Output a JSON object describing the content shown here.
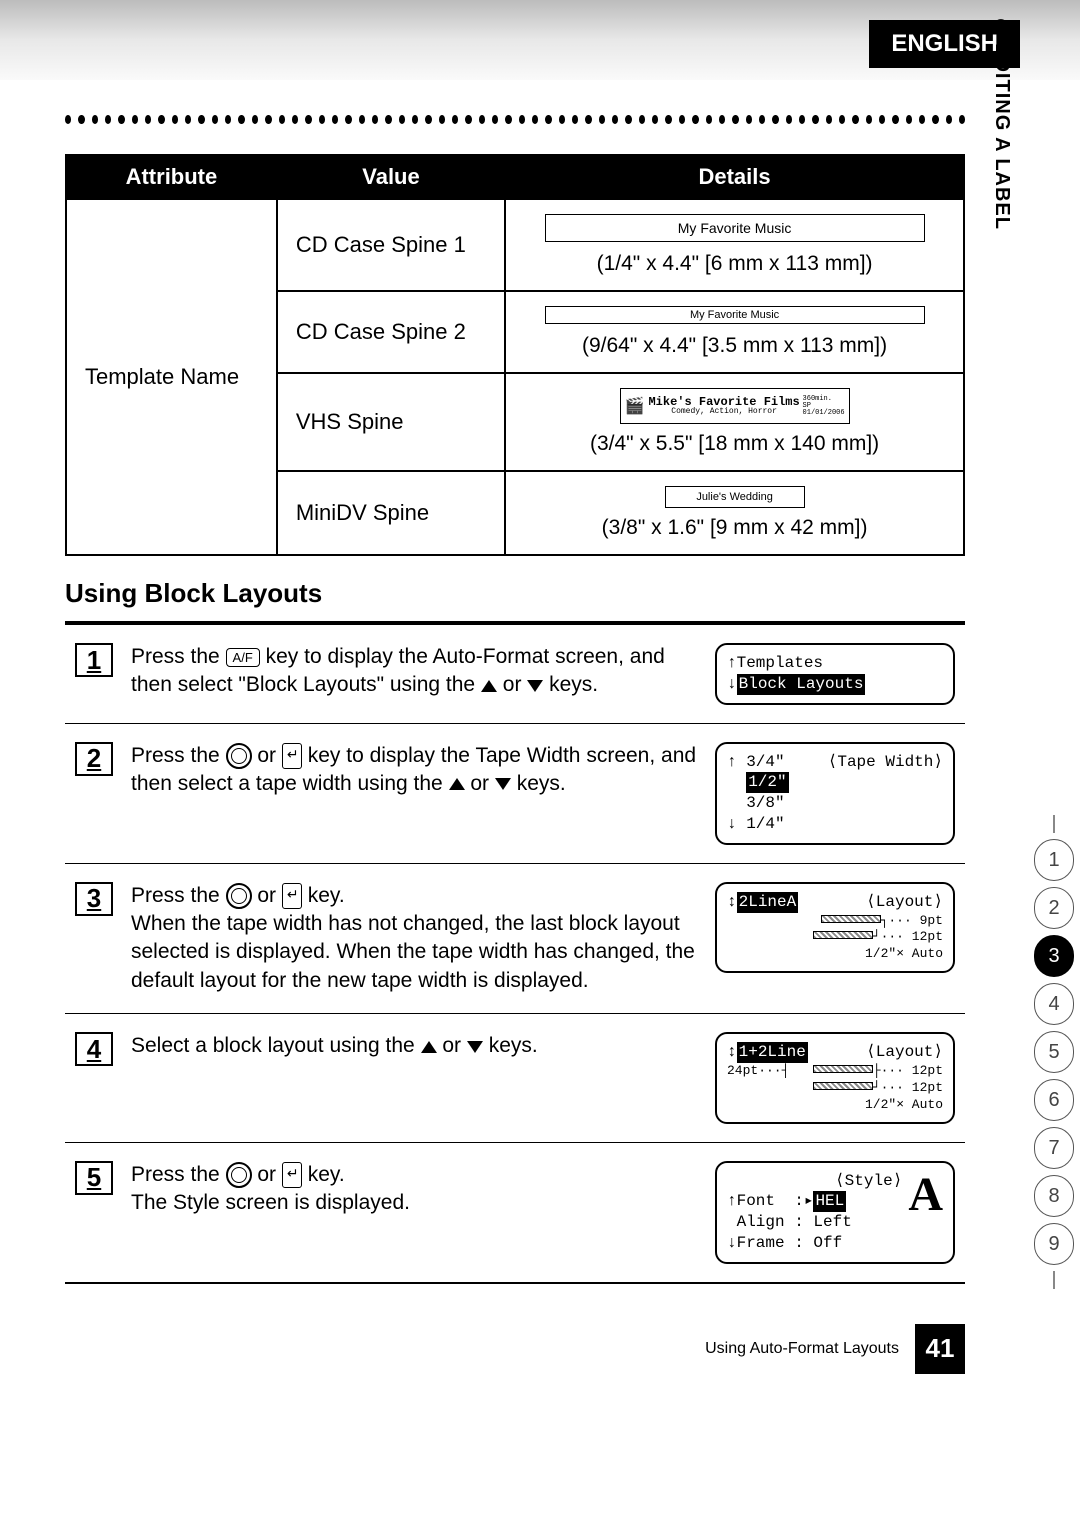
{
  "lang_tab": "ENGLISH",
  "side_section": "EDITING A LABEL",
  "table": {
    "headers": [
      "Attribute",
      "Value",
      "Details"
    ],
    "attribute_label": "Template Name",
    "rows": [
      {
        "value": "CD Case Spine 1",
        "sample_text": "My Favorite Music",
        "dims": "(1/4\" x 4.4\" [6 mm x 113 mm])",
        "sample_class": "sample-1"
      },
      {
        "value": "CD Case Spine 2",
        "sample_text": "My Favorite Music",
        "dims": "(9/64\" x 4.4\" [3.5 mm x 113 mm])",
        "sample_class": "sample-2"
      },
      {
        "value": "VHS Spine",
        "vhs_title": "Mike's Favorite Films",
        "vhs_sub": "Comedy, Action, Horror",
        "vhs_r1": "360min.",
        "vhs_r2": "SP",
        "vhs_r3": "01/01/2006",
        "dims": "(3/4\" x 5.5\" [18 mm x 140 mm])"
      },
      {
        "value": "MiniDV Spine",
        "sample_text": "Julie's Wedding",
        "dims": "(3/8\" x 1.6\" [9 mm x 42 mm])"
      }
    ]
  },
  "section_title": "Using Block Layouts",
  "steps": [
    {
      "num": "1",
      "html": "Press the <span class='key-box'>A/F</span> key to display the Auto-Format screen, and then select \"Block Layouts\" using the <span class='arrow-up'></span> or <span class='arrow-down'></span> keys.",
      "lcd": {
        "type": "menu",
        "lines": [
          "Templates",
          "Block Layouts"
        ],
        "highlight_index": 1
      }
    },
    {
      "num": "2",
      "html": "Press the <span class='key-circle'></span> or <span class='enter-key'></span> key to display the Tape Width screen, and then select a tape width using the <span class='arrow-up'></span> or <span class='arrow-down'></span> keys.",
      "lcd": {
        "type": "tapewidth",
        "title": "⟨Tape Width⟩",
        "options": [
          "3/4\"",
          "1/2\"",
          "3/8\"",
          "1/4\""
        ],
        "highlight_index": 1
      }
    },
    {
      "num": "3",
      "html": "Press the <span class='key-circle'></span> or <span class='enter-key'></span> key.<br>When the tape width has not changed, the last block layout selected is displayed. When the tape width has changed, the default layout for the new tape width is displayed.",
      "lcd": {
        "type": "layout",
        "name": "2LineA",
        "title": "⟨Layout⟩",
        "right_lines": [
          "9pt",
          "12pt"
        ],
        "footer": "1/2\"× Auto"
      }
    },
    {
      "num": "4",
      "html": "Select a block layout using the <span class='arrow-up'></span> or <span class='arrow-down'></span> keys.",
      "lcd": {
        "type": "layout2",
        "name": "1+2Line",
        "title": "⟨Layout⟩",
        "left_pt": "24pt",
        "right_lines": [
          "12pt",
          "12pt"
        ],
        "footer": "1/2\"× Auto"
      }
    },
    {
      "num": "5",
      "html": "Press the <span class='key-circle'></span> or <span class='enter-key'></span> key.<br>The Style screen is displayed.",
      "lcd": {
        "type": "style",
        "title": "⟨Style⟩",
        "rows": [
          [
            "Font",
            "HEL"
          ],
          [
            "Align",
            "Left"
          ],
          [
            "Frame",
            "Off"
          ]
        ],
        "bigA": "A"
      }
    }
  ],
  "footer_text": "Using Auto-Format Layouts",
  "page_number": "41",
  "chapters": [
    "1",
    "2",
    "3",
    "4",
    "5",
    "6",
    "7",
    "8",
    "9"
  ],
  "active_chapter_index": 2
}
